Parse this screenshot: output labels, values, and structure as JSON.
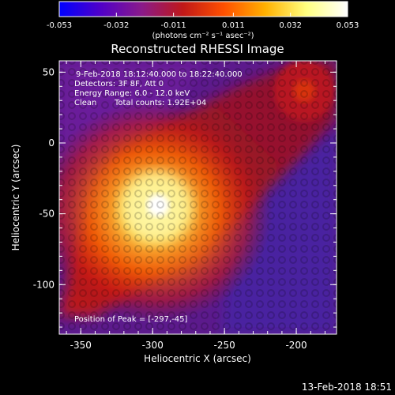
{
  "chart_data": {
    "type": "heatmap",
    "title": "Reconstructed RHESSI Image",
    "xlabel": "Heliocentric X (arcsec)",
    "ylabel": "Heliocentric Y (arcsec)",
    "xlim": [
      -365,
      -172
    ],
    "ylim": [
      -135,
      58
    ],
    "x_ticks": [
      "-350",
      "-300",
      "-250",
      "-200"
    ],
    "x_tick_values": [
      -350,
      -300,
      -250,
      -200
    ],
    "y_ticks": [
      "50",
      "0",
      "-50",
      "-100"
    ],
    "y_tick_values": [
      50,
      0,
      -50,
      -100
    ],
    "colorbar": {
      "ticks": [
        "-0.053",
        "-0.032",
        "-0.011",
        "0.011",
        "0.032",
        "0.053"
      ],
      "tick_values": [
        -0.053,
        -0.032,
        -0.011,
        0.011,
        0.032,
        0.053
      ],
      "range": [
        -0.053,
        0.053
      ],
      "units_label": "(photons cm⁻² s⁻¹ asec⁻²)",
      "colormap_stops": [
        "#0000ff",
        "#5000c8",
        "#8a1a8a",
        "#c01818",
        "#ff5000",
        "#ffb000",
        "#ffff80",
        "#ffffff"
      ]
    },
    "peak": {
      "x": -297,
      "y": -45
    },
    "annotations": {
      "time_range": "9-Feb-2018 18:12:40.000 to 18:22:40.000",
      "detectors": "Detectors: 3F 8F, Att 0",
      "energy": "Energy Range: 6.0 - 12.0 keV",
      "clean": "Clean",
      "counts": "Total counts: 1.92E+04",
      "peak_label": "Position of Peak = [-297,-45]"
    }
  },
  "footer": {
    "timestamp": "13-Feb-2018 18:51"
  }
}
